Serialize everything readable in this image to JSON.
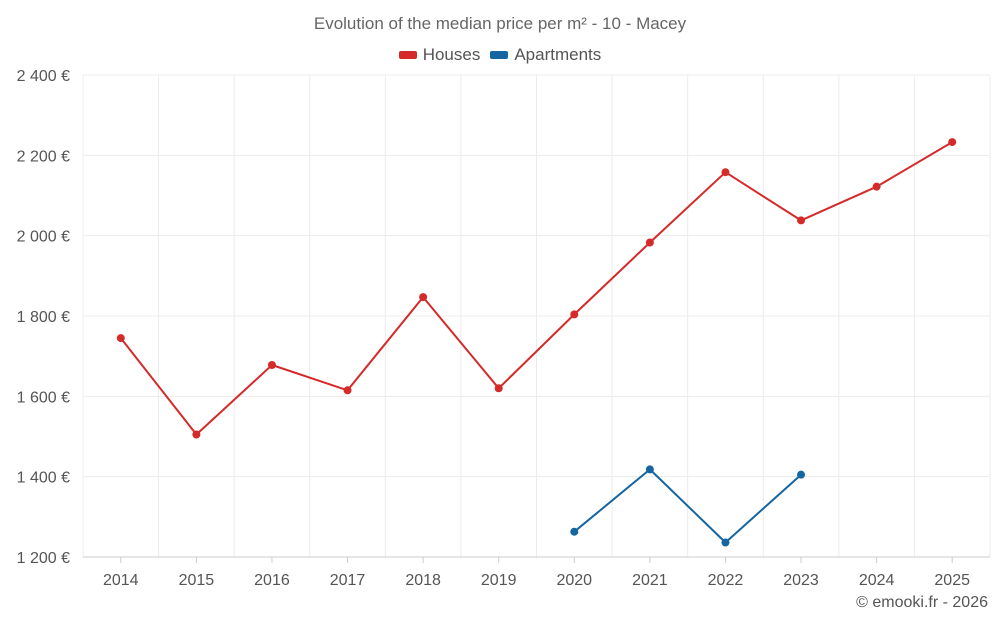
{
  "chart_data": {
    "type": "line",
    "title": "Evolution of the median price per m² - 10 - Macey",
    "categories": [
      "2014",
      "2015",
      "2016",
      "2017",
      "2018",
      "2019",
      "2020",
      "2021",
      "2022",
      "2023",
      "2024",
      "2025"
    ],
    "series": [
      {
        "name": "Houses",
        "color": "#d42a2a",
        "values": [
          1745,
          1505,
          1678,
          1615,
          1847,
          1620,
          1804,
          1983,
          2158,
          2038,
          2122,
          2233
        ]
      },
      {
        "name": "Apartments",
        "color": "#1565a0",
        "values": [
          null,
          null,
          null,
          null,
          null,
          null,
          1263,
          1418,
          1236,
          1405,
          null,
          null
        ]
      }
    ],
    "ylim": [
      1200,
      2400
    ],
    "yticks": [
      1200,
      1400,
      1600,
      1800,
      2000,
      2200,
      2400
    ],
    "ytick_labels": [
      "1 200 €",
      "1 400 €",
      "1 600 €",
      "1 800 €",
      "2 000 €",
      "2 200 €",
      "2 400 €"
    ],
    "xlabel": "",
    "ylabel": "",
    "grid": true,
    "legend_position": "top-center"
  },
  "credit": "© emooki.fr - 2026"
}
